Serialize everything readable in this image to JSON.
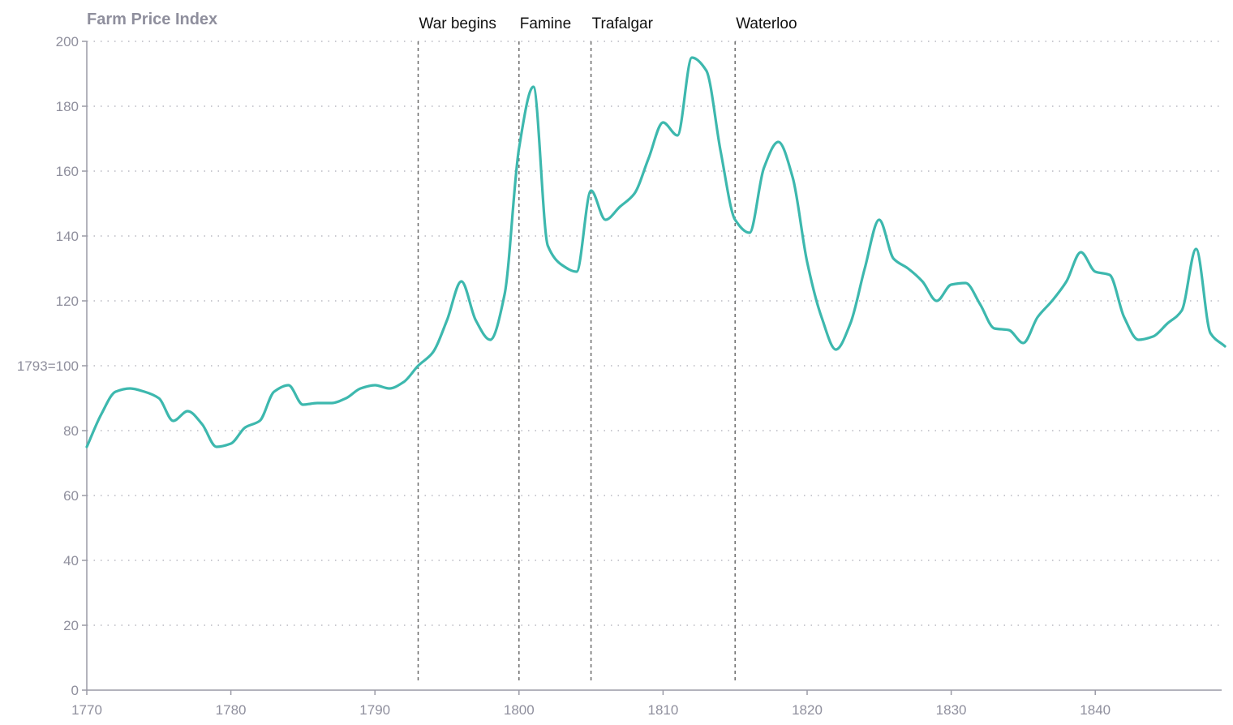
{
  "chart_data": {
    "type": "line",
    "ylabel": "Farm Price Index",
    "xlim": [
      1770,
      1849
    ],
    "ylim": [
      0,
      200
    ],
    "y_ticks": [
      0,
      20,
      40,
      60,
      80,
      100,
      120,
      140,
      160,
      180,
      200
    ],
    "y_tick_labels": [
      "0",
      "20",
      "40",
      "60",
      "80",
      "1793=100",
      "120",
      "140",
      "160",
      "180",
      "200"
    ],
    "x_ticks": [
      1770,
      1780,
      1790,
      1800,
      1810,
      1820,
      1830,
      1840
    ],
    "x_tick_labels": [
      "1770",
      "1780",
      "1790",
      "1800",
      "1810",
      "1820",
      "1830",
      "1840"
    ],
    "grid": true,
    "events": [
      {
        "label": "War begins",
        "x": 1793
      },
      {
        "label": "Famine",
        "x": 1800
      },
      {
        "label": "Trafalgar",
        "x": 1805
      },
      {
        "label": "Waterloo",
        "x": 1815
      }
    ],
    "series": [
      {
        "color": "#3db8ae",
        "x": [
          1770,
          1771,
          1772,
          1773,
          1774,
          1775,
          1776,
          1777,
          1778,
          1779,
          1780,
          1781,
          1782,
          1783,
          1784,
          1785,
          1786,
          1787,
          1788,
          1789,
          1790,
          1791,
          1792,
          1793,
          1794,
          1795,
          1796,
          1797,
          1798,
          1799,
          1800,
          1801,
          1802,
          1803,
          1804,
          1805,
          1806,
          1807,
          1808,
          1809,
          1810,
          1811,
          1812,
          1813,
          1814,
          1815,
          1816,
          1817,
          1818,
          1819,
          1820,
          1821,
          1822,
          1823,
          1824,
          1825,
          1826,
          1827,
          1828,
          1829,
          1830,
          1831,
          1832,
          1833,
          1834,
          1835,
          1836,
          1837,
          1838,
          1839,
          1840,
          1841,
          1842,
          1843,
          1844,
          1845,
          1846,
          1847,
          1848,
          1849
        ],
        "values": [
          75,
          85,
          92,
          93,
          92,
          90,
          83,
          86,
          82,
          75,
          76,
          81,
          83,
          92,
          94,
          88,
          88.5,
          88.5,
          90,
          93,
          94,
          93,
          95,
          100,
          104,
          114,
          126,
          114,
          108,
          122,
          167,
          186,
          137,
          131,
          129,
          154,
          145,
          149,
          153,
          164,
          175,
          171,
          195,
          191,
          166,
          145,
          141,
          161,
          169,
          158,
          132,
          115,
          105,
          113,
          130,
          145,
          133,
          130,
          126,
          120,
          125,
          125.5,
          119,
          111.5,
          111,
          107,
          115,
          120,
          126,
          135,
          129,
          128,
          115,
          108,
          109,
          113,
          117,
          136,
          110,
          106
        ]
      }
    ]
  }
}
